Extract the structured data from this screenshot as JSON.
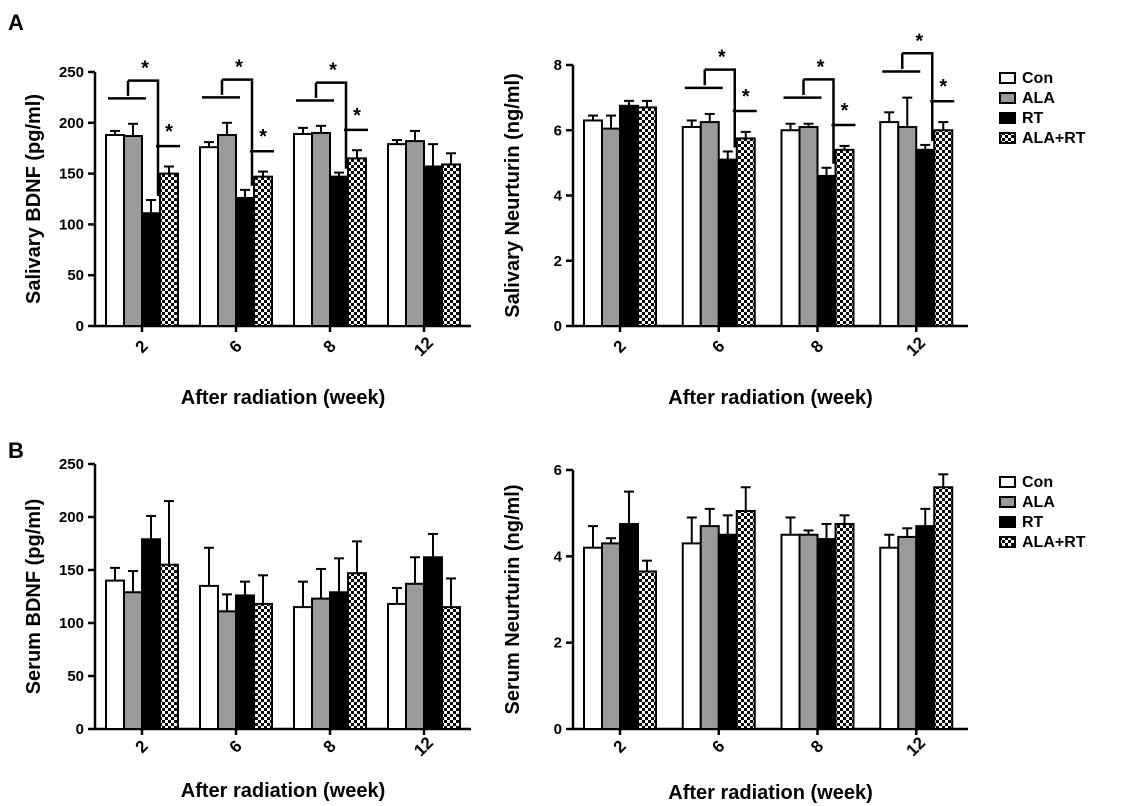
{
  "figure": {
    "colors": {
      "Con": "#ffffff",
      "ALA": "#9a9a9a",
      "RT": "#000000",
      "ALA+RT": "checker-black-white"
    }
  },
  "chart_data": [
    {
      "panel_label": "A",
      "type": "bar",
      "ylabel": "Salivary BDNF (pg/ml)",
      "xlabel": "After radiation (week)",
      "categories": [
        "2",
        "6",
        "8",
        "12"
      ],
      "ylim": [
        0,
        250
      ],
      "yticks": [
        0,
        50,
        100,
        150,
        200,
        250
      ],
      "legend": "none",
      "series": [
        {
          "name": "Con",
          "values": [
            188,
            176,
            189,
            179
          ],
          "errors": [
            4,
            5,
            6,
            4
          ]
        },
        {
          "name": "ALA",
          "values": [
            187,
            188,
            190,
            182
          ],
          "errors": [
            12,
            12,
            7,
            10
          ]
        },
        {
          "name": "RT",
          "values": [
            111,
            126,
            147,
            157
          ],
          "errors": [
            13,
            8,
            4,
            22
          ]
        },
        {
          "name": "ALA+RT",
          "values": [
            150,
            147,
            165,
            159
          ],
          "errors": [
            7,
            5,
            8,
            11
          ]
        }
      ],
      "significance": [
        {
          "category": "2",
          "marks": [
            {
              "from": "Con-ALA",
              "to": "RT",
              "label": "*"
            },
            {
              "from": "RT",
              "to": "ALA+RT",
              "label": "*"
            }
          ]
        },
        {
          "category": "6",
          "marks": [
            {
              "from": "Con-ALA",
              "to": "RT",
              "label": "*"
            },
            {
              "from": "RT",
              "to": "ALA+RT",
              "label": "*"
            }
          ]
        },
        {
          "category": "8",
          "marks": [
            {
              "from": "Con-ALA",
              "to": "RT",
              "label": "*"
            },
            {
              "from": "RT",
              "to": "ALA+RT",
              "label": "*"
            }
          ]
        }
      ]
    },
    {
      "panel_label": "",
      "type": "bar",
      "ylabel": "Salivary Neurturin (ng/ml)",
      "xlabel": "After radiation (week)",
      "categories": [
        "2",
        "6",
        "8",
        "12"
      ],
      "ylim": [
        0,
        8
      ],
      "yticks": [
        0,
        2,
        4,
        6,
        8
      ],
      "legend": "right",
      "series": [
        {
          "name": "Con",
          "values": [
            6.3,
            6.1,
            6.0,
            6.25
          ],
          "errors": [
            0.15,
            0.2,
            0.2,
            0.3
          ]
        },
        {
          "name": "ALA",
          "values": [
            6.05,
            6.25,
            6.1,
            6.1
          ],
          "errors": [
            0.4,
            0.25,
            0.1,
            0.9
          ]
        },
        {
          "name": "RT",
          "values": [
            6.75,
            5.1,
            4.6,
            5.4
          ],
          "errors": [
            0.15,
            0.25,
            0.25,
            0.15
          ]
        },
        {
          "name": "ALA+RT",
          "values": [
            6.7,
            5.75,
            5.4,
            6.0
          ],
          "errors": [
            0.2,
            0.2,
            0.12,
            0.25
          ]
        }
      ],
      "significance": [
        {
          "category": "6",
          "marks": [
            {
              "from": "Con-ALA",
              "to": "RT",
              "label": "*"
            },
            {
              "from": "RT",
              "to": "ALA+RT",
              "label": "*"
            }
          ]
        },
        {
          "category": "8",
          "marks": [
            {
              "from": "Con-ALA",
              "to": "RT",
              "label": "*"
            },
            {
              "from": "RT",
              "to": "ALA+RT",
              "label": "*"
            }
          ]
        },
        {
          "category": "12",
          "marks": [
            {
              "from": "Con-ALA",
              "to": "RT",
              "label": "*"
            },
            {
              "from": "RT",
              "to": "ALA+RT",
              "label": "*"
            }
          ]
        }
      ]
    },
    {
      "panel_label": "B",
      "type": "bar",
      "ylabel": "Serum BDNF (pg/ml)",
      "xlabel": "After radiation (week)",
      "categories": [
        "2",
        "6",
        "8",
        "12"
      ],
      "ylim": [
        0,
        250
      ],
      "yticks": [
        0,
        50,
        100,
        150,
        200,
        250
      ],
      "legend": "none",
      "series": [
        {
          "name": "Con",
          "values": [
            140,
            135,
            115,
            118
          ],
          "errors": [
            12,
            36,
            24,
            15
          ]
        },
        {
          "name": "ALA",
          "values": [
            129,
            111,
            123,
            137
          ],
          "errors": [
            20,
            16,
            28,
            25
          ]
        },
        {
          "name": "RT",
          "values": [
            179,
            126,
            129,
            162
          ],
          "errors": [
            22,
            13,
            32,
            22
          ]
        },
        {
          "name": "ALA+RT",
          "values": [
            155,
            118,
            147,
            115
          ],
          "errors": [
            60,
            27,
            30,
            27
          ]
        }
      ],
      "significance": []
    },
    {
      "panel_label": "",
      "type": "bar",
      "ylabel": "Serum Neurturin (ng/ml)",
      "xlabel": "After radiation (week)",
      "categories": [
        "2",
        "6",
        "8",
        "12"
      ],
      "ylim": [
        0,
        6
      ],
      "yticks": [
        0,
        2,
        4,
        6
      ],
      "legend": "right",
      "series": [
        {
          "name": "Con",
          "values": [
            4.2,
            4.3,
            4.5,
            4.2
          ],
          "errors": [
            0.5,
            0.6,
            0.4,
            0.3
          ]
        },
        {
          "name": "ALA",
          "values": [
            4.3,
            4.7,
            4.5,
            4.45
          ],
          "errors": [
            0.12,
            0.4,
            0.1,
            0.2
          ]
        },
        {
          "name": "RT",
          "values": [
            4.75,
            4.5,
            4.4,
            4.7
          ],
          "errors": [
            0.75,
            0.45,
            0.35,
            0.4
          ]
        },
        {
          "name": "ALA+RT",
          "values": [
            3.65,
            5.05,
            4.75,
            5.6
          ],
          "errors": [
            0.25,
            0.55,
            0.2,
            0.3
          ]
        }
      ],
      "significance": []
    }
  ]
}
